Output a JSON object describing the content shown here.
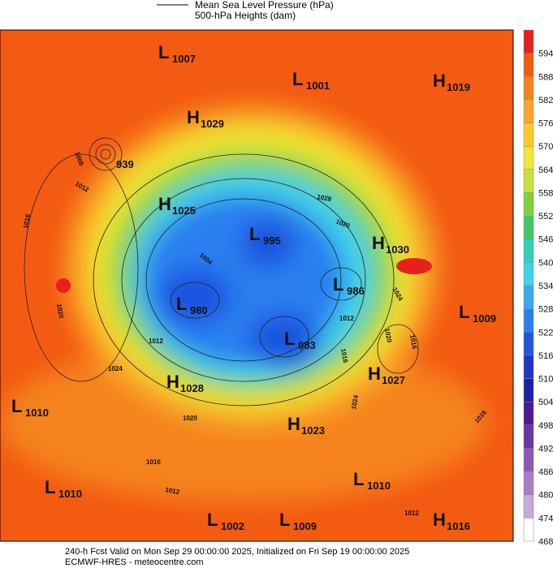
{
  "legend": {
    "line_label": "Mean Sea Level Pressure (hPa)",
    "fill_label": "500-hPa Heights (dam)"
  },
  "colorbar": {
    "ticks": [
      594,
      588,
      582,
      576,
      570,
      564,
      558,
      552,
      546,
      540,
      534,
      528,
      522,
      516,
      510,
      504,
      498,
      492,
      486,
      480,
      474,
      468
    ],
    "colors": [
      "#e8201c",
      "#f35a12",
      "#f5821a",
      "#f8a428",
      "#fbc92c",
      "#f2e630",
      "#c5e33a",
      "#7fd23c",
      "#3fca62",
      "#2fd0b8",
      "#40d2ea",
      "#3aaaf0",
      "#2a7ff0",
      "#1f55e0",
      "#1a35c8",
      "#1c1fa8",
      "#4a1898",
      "#6a34a8",
      "#8a58b8",
      "#a77ec8",
      "#c6a8dc",
      "#ffffff"
    ]
  },
  "pressure_centers": [
    {
      "type": "L",
      "pressure": 1007
    },
    {
      "type": "L",
      "pressure": 1001
    },
    {
      "type": "H",
      "pressure": 1019
    },
    {
      "type": "H",
      "pressure": 1029
    },
    {
      "pressure": 939
    },
    {
      "type": "H",
      "pressure": 1025
    },
    {
      "type": "L",
      "pressure": 995
    },
    {
      "type": "H",
      "pressure": 1030
    },
    {
      "type": "L",
      "pressure": 986
    },
    {
      "type": "L",
      "pressure": 980
    },
    {
      "type": "L",
      "pressure": 1009
    },
    {
      "type": "L",
      "pressure": 983
    },
    {
      "type": "H",
      "pressure": 1027
    },
    {
      "type": "H",
      "pressure": 1028
    },
    {
      "type": "L",
      "pressure": 1010
    },
    {
      "type": "H",
      "pressure": 1023
    },
    {
      "type": "L",
      "pressure": 1010
    },
    {
      "type": "L",
      "pressure": 1010
    },
    {
      "type": "L",
      "pressure": 1002
    },
    {
      "type": "L",
      "pressure": 1009
    },
    {
      "type": "H",
      "pressure": 1016
    }
  ],
  "contour_labels": [
    1008,
    1012,
    1016,
    1020,
    1028,
    1020,
    1004,
    1012,
    1024,
    1020,
    1016,
    1012,
    1024,
    1016,
    1012,
    1020,
    1016,
    1024,
    1016,
    1012
  ],
  "footer": {
    "line1": "240-h Fcst Valid on Mon Sep 29 00:00:00 2025, Initialized on Fri Sep 19 00:00:00 2025",
    "line2": "ECMWF-HRES - meteocentre.com"
  }
}
